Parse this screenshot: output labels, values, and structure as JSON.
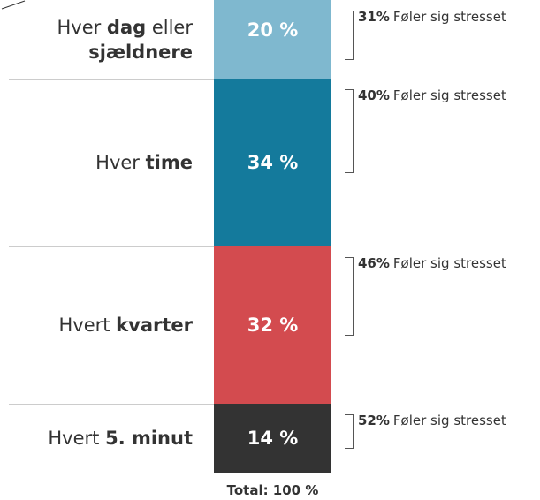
{
  "chart_data": {
    "type": "stacked-bar",
    "categories": [
      [
        [
          {
            "text": "Hver "
          },
          {
            "text": "dag",
            "bold": true
          },
          {
            "text": " eller"
          }
        ],
        [
          {
            "text": "sjældnere",
            "bold": true
          }
        ]
      ],
      [
        [
          {
            "text": "Hver "
          },
          {
            "text": "time",
            "bold": true
          }
        ]
      ],
      [
        [
          {
            "text": "Hvert "
          },
          {
            "text": "kvarter",
            "bold": true
          }
        ]
      ],
      [
        [
          {
            "text": "Hvert "
          },
          {
            "text": "5. minut",
            "bold": true
          }
        ]
      ]
    ],
    "values": [
      20,
      34,
      32,
      14
    ],
    "value_labels": [
      "20 %",
      "34 %",
      "32 %",
      "14 %"
    ],
    "colors": [
      "#7fb8cf",
      "#147a9c",
      "#d34b4f",
      "#333333"
    ],
    "stressed": {
      "values": [
        31,
        40,
        46,
        52
      ],
      "value_labels": [
        "31%",
        "40%",
        "46%",
        "52%"
      ],
      "text": "Føler sig stresset"
    },
    "total": "Total: 100 %"
  }
}
